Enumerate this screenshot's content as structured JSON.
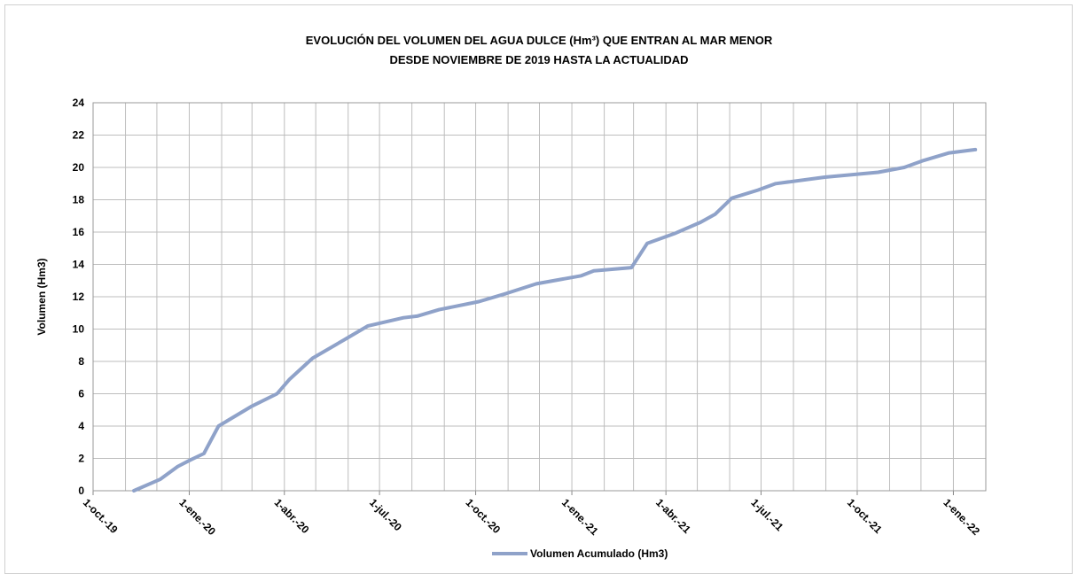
{
  "chart_data": {
    "type": "line",
    "title": "EVOLUCIÓN DEL VOLUMEN DEL AGUA DULCE (Hm³) QUE ENTRAN AL MAR MENOR",
    "subtitle": "DESDE NOVIEMBRE DE 2019 HASTA LA ACTUALIDAD",
    "y_label": "Volumen (Hm3)",
    "x": [
      "2019-11-09",
      "2019-12-04",
      "2019-12-21",
      "2020-01-02",
      "2020-01-15",
      "2020-01-29",
      "2020-02-29",
      "2020-03-25",
      "2020-04-06",
      "2020-04-28",
      "2020-05-30",
      "2020-06-20",
      "2020-07-24",
      "2020-08-06",
      "2020-08-27",
      "2020-10-04",
      "2020-10-30",
      "2020-11-28",
      "2021-01-10",
      "2021-01-22",
      "2021-02-27",
      "2021-03-14",
      "2021-04-09",
      "2021-05-04",
      "2021-05-18",
      "2021-06-03",
      "2021-06-28",
      "2021-07-15",
      "2021-08-31",
      "2021-10-21",
      "2021-11-15",
      "2021-12-02",
      "2021-12-28",
      "2022-01-22"
    ],
    "series": [
      {
        "name": "Volumen Acumulado (Hm3)",
        "color": "#8fa2c9",
        "values": [
          0,
          0.7,
          1.5,
          1.9,
          2.3,
          4.0,
          5.2,
          6.0,
          6.9,
          8.2,
          9.4,
          10.2,
          10.7,
          10.8,
          11.2,
          11.7,
          12.2,
          12.8,
          13.3,
          13.6,
          13.8,
          15.3,
          15.9,
          16.6,
          17.1,
          18.1,
          18.6,
          19.0,
          19.4,
          19.7,
          20.0,
          20.4,
          20.9,
          21.1
        ]
      }
    ],
    "xlim": [
      "2019-10-01",
      "2022-02-01"
    ],
    "xticks": [
      {
        "value": "2019-10-01",
        "label": "1-oct.-19"
      },
      {
        "value": "2020-01-01",
        "label": "1-ene.-20"
      },
      {
        "value": "2020-04-01",
        "label": "1-abr.-20"
      },
      {
        "value": "2020-07-01",
        "label": "1-jul.-20"
      },
      {
        "value": "2020-10-01",
        "label": "1-oct.-20"
      },
      {
        "value": "2021-01-01",
        "label": "1-ene.-21"
      },
      {
        "value": "2021-04-01",
        "label": "1-abr.-21"
      },
      {
        "value": "2021-07-01",
        "label": "1-jul.-21"
      },
      {
        "value": "2021-10-01",
        "label": "1-oct.-21"
      },
      {
        "value": "2022-01-01",
        "label": "1-ene.-22"
      }
    ],
    "xminor": [
      "2019-11-01",
      "2019-12-01",
      "2020-02-01",
      "2020-03-01",
      "2020-05-01",
      "2020-06-01",
      "2020-08-01",
      "2020-09-01",
      "2020-11-01",
      "2020-12-01",
      "2021-02-01",
      "2021-03-01",
      "2021-05-01",
      "2021-06-01",
      "2021-08-01",
      "2021-09-01",
      "2021-11-01",
      "2021-12-01",
      "2022-02-01"
    ],
    "ylim": [
      0,
      24
    ],
    "yticks": [
      0,
      2,
      4,
      6,
      8,
      10,
      12,
      14,
      16,
      18,
      20,
      22,
      24
    ],
    "grid": true,
    "legend": "bottom"
  }
}
